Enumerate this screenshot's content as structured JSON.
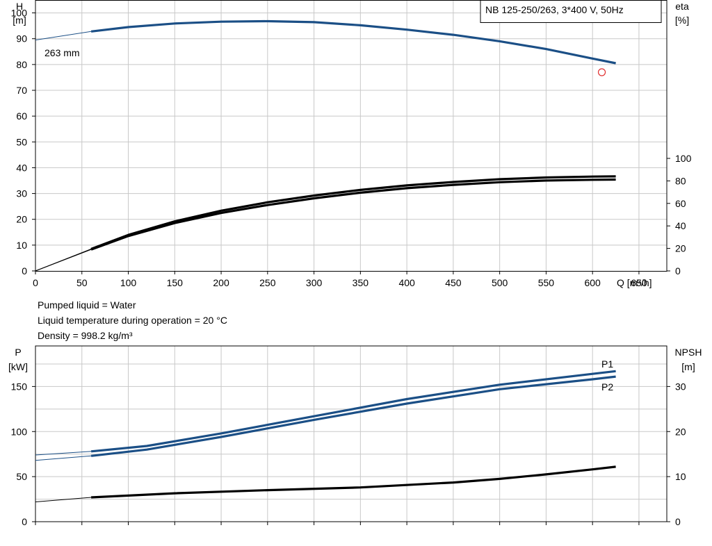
{
  "pump_label": "NB 125-250/263, 3*400 V, 50Hz",
  "info": {
    "line1": "Pumped liquid = Water",
    "line2": "Liquid temperature during operation = 20 °C",
    "line3": "Density = 998.2 kg/m³"
  },
  "colors": {
    "blue": "#1b4f86",
    "black": "#000000",
    "grid": "#c8c8c8",
    "marker": "#e03030"
  },
  "chart_data": [
    {
      "type": "line",
      "title": "NB 125-250/263, 3*400 V, 50Hz",
      "xlabel": "Q [m³/h]",
      "ylabel_left": "H\n[m]",
      "ylabel_right": "eta\n[%]",
      "xlim": [
        0,
        680
      ],
      "ylim_left": [
        0,
        105
      ],
      "ylim_right": [
        0,
        100
      ],
      "x_ticks": [
        "0",
        "50",
        "100",
        "150",
        "200",
        "250",
        "300",
        "350",
        "400",
        "450",
        "500",
        "550",
        "600",
        "650"
      ],
      "y_ticks_left": [
        "0",
        "10",
        "20",
        "30",
        "40",
        "50",
        "60",
        "70",
        "80",
        "90",
        "100"
      ],
      "y_ticks_right": [
        "0",
        "20",
        "40",
        "60",
        "80",
        "100"
      ],
      "grid": true,
      "annotation": "263 mm",
      "series": [
        {
          "key": "H",
          "axis": "left",
          "color": "#1b4f86",
          "x": [
            0,
            60,
            100,
            150,
            200,
            250,
            300,
            350,
            400,
            450,
            500,
            550,
            600,
            625
          ],
          "y": [
            89.5,
            92.8,
            94.5,
            95.9,
            96.6,
            96.8,
            96.4,
            95.2,
            93.5,
            91.5,
            89.0,
            86.0,
            82.3,
            80.5
          ],
          "thin_until": 60
        },
        {
          "key": "eta1",
          "axis": "right",
          "color": "#000000",
          "x": [
            0,
            60,
            100,
            150,
            200,
            250,
            300,
            350,
            400,
            450,
            500,
            550,
            600,
            625
          ],
          "y": [
            0,
            19.5,
            32,
            44,
            53.5,
            61,
            67,
            72,
            76,
            79,
            81.5,
            83,
            83.8,
            84
          ],
          "thin_until": 60
        },
        {
          "key": "eta2",
          "axis": "right",
          "color": "#000000",
          "x": [
            0,
            60,
            100,
            150,
            200,
            250,
            300,
            350,
            400,
            450,
            500,
            550,
            600,
            625
          ],
          "y": [
            0,
            19,
            31,
            42.5,
            51.5,
            58.5,
            64.5,
            69.5,
            73.5,
            76.5,
            78.8,
            80.3,
            81,
            81.2
          ],
          "thin_until": 60
        }
      ],
      "duty_point": {
        "x": 610,
        "y": 77
      }
    },
    {
      "type": "line",
      "xlabel": "",
      "ylabel_left": "P\n[kW]",
      "ylabel_right": "NPSH\n[m]",
      "xlim": [
        0,
        680
      ],
      "ylim_left": [
        0,
        195
      ],
      "ylim_right": [
        0,
        39
      ],
      "y_ticks_left": [
        "0",
        "50",
        "100",
        "150"
      ],
      "y_ticks_right": [
        "0",
        "10",
        "20",
        "30"
      ],
      "grid": true,
      "series": [
        {
          "name": "P1",
          "key": "P1",
          "axis": "left",
          "color": "#1b4f86",
          "x": [
            0,
            60,
            120,
            200,
            300,
            400,
            500,
            600,
            625
          ],
          "y": [
            74,
            78,
            84,
            98,
            117,
            136,
            152,
            164,
            167
          ],
          "thin_until": 60
        },
        {
          "name": "P2",
          "key": "P2",
          "axis": "left",
          "color": "#1b4f86",
          "x": [
            0,
            60,
            120,
            200,
            300,
            400,
            500,
            600,
            625
          ],
          "y": [
            68,
            73,
            80,
            94,
            113,
            131,
            147,
            158,
            161
          ],
          "thin_until": 60
        },
        {
          "key": "NPSH",
          "axis": "right",
          "color": "#000000",
          "x": [
            0,
            60,
            150,
            250,
            350,
            450,
            500,
            550,
            600,
            625
          ],
          "y": [
            4.4,
            5.4,
            6.3,
            7.0,
            7.6,
            8.7,
            9.5,
            10.5,
            11.6,
            12.2
          ],
          "thin_until": 60
        }
      ]
    }
  ]
}
